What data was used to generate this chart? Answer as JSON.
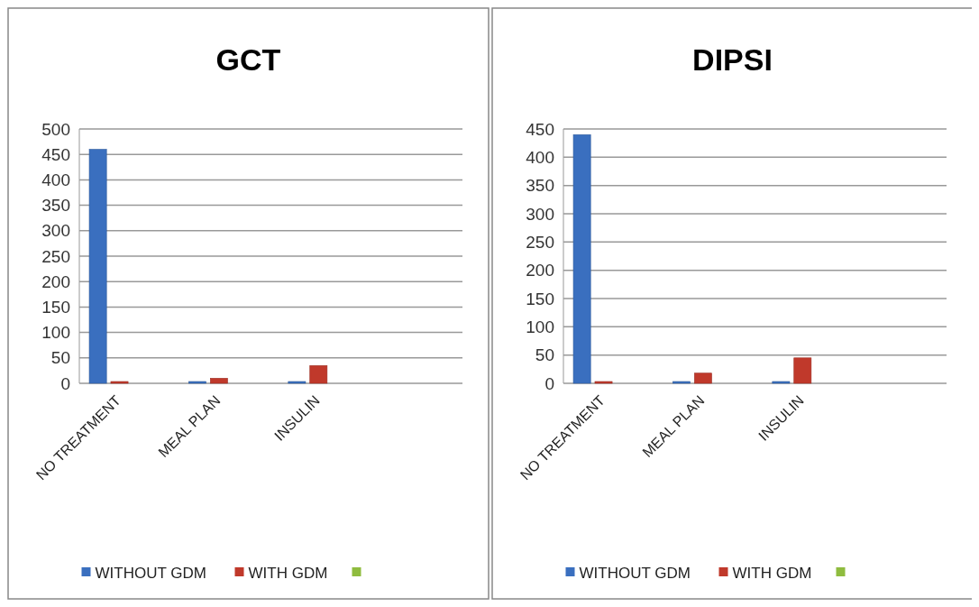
{
  "chart_data": [
    {
      "type": "bar",
      "title": "GCT",
      "categories": [
        "NO TREATMENT",
        "MEAL PLAN",
        "INSULIN"
      ],
      "series": [
        {
          "name": "WITHOUT GDM",
          "color": "#3a6fbf",
          "values": [
            460,
            0,
            0
          ]
        },
        {
          "name": "WITH GDM",
          "color": "#c0392b",
          "values": [
            0,
            10,
            35
          ]
        },
        {
          "color": "#8fbc3f",
          "values": [
            null,
            null,
            null
          ]
        }
      ],
      "ylim": [
        0,
        500
      ],
      "yticks": [
        0,
        50,
        100,
        150,
        200,
        250,
        300,
        350,
        400,
        450,
        500
      ],
      "grid": "y",
      "legend": "bottom"
    },
    {
      "type": "bar",
      "title": "DIPSI",
      "categories": [
        "NO TREATMENT",
        "MEAL PLAN",
        "INSULIN"
      ],
      "series": [
        {
          "name": "WITHOUT GDM",
          "color": "#3a6fbf",
          "values": [
            440,
            0,
            0
          ]
        },
        {
          "name": "WITH GDM",
          "color": "#c0392b",
          "values": [
            0,
            18,
            45
          ]
        },
        {
          "color": "#8fbc3f",
          "values": [
            null,
            null,
            null
          ]
        }
      ],
      "ylim": [
        0,
        450
      ],
      "yticks": [
        0,
        50,
        100,
        150,
        200,
        250,
        300,
        350,
        400,
        450
      ],
      "grid": "y",
      "legend": "bottom"
    }
  ]
}
